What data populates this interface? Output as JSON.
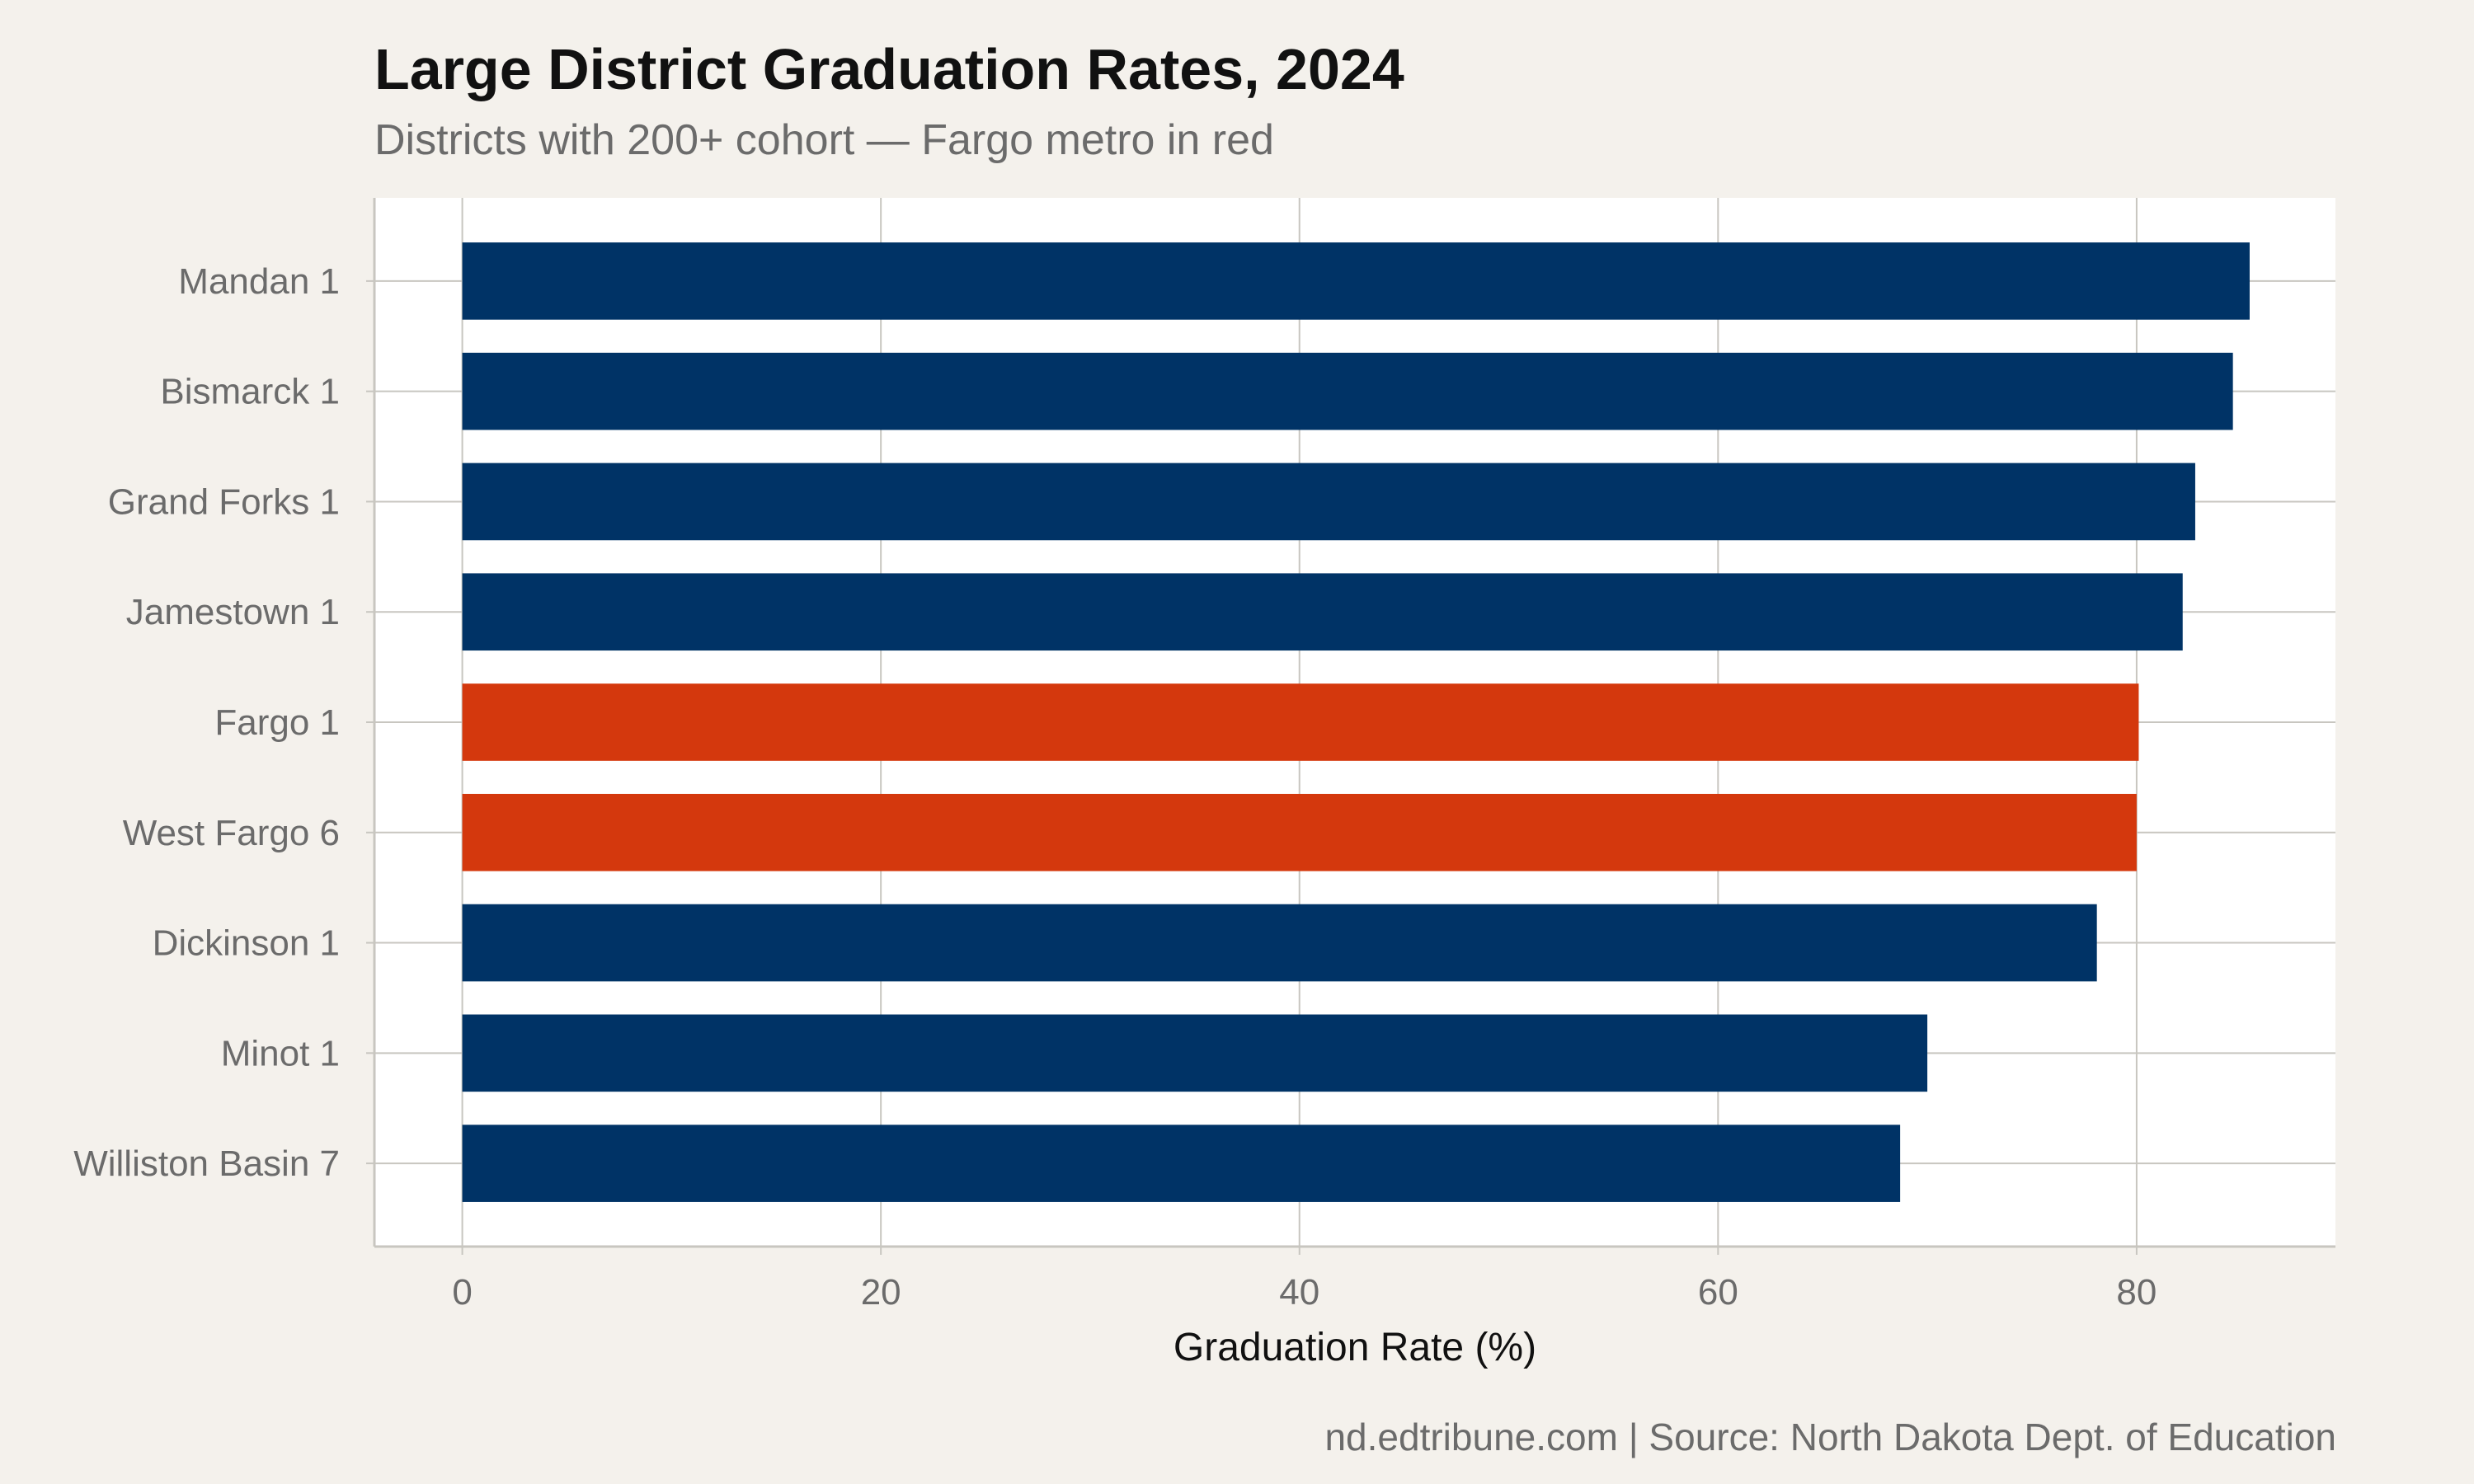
{
  "title": "Large District Graduation Rates, 2024",
  "subtitle": "Districts with 200+ cohort — Fargo metro in red",
  "caption": "nd.edtribune.com | Source: North Dakota Dept. of Education",
  "colors": {
    "background": "#f4f1ec",
    "panel": "#ffffff",
    "default_bar": "#003366",
    "highlight_bar": "#d4380d",
    "grid": "#c8c6c0"
  },
  "chart_data": {
    "type": "bar",
    "orientation": "horizontal",
    "title": "Large District Graduation Rates, 2024",
    "subtitle": "Districts with 200+ cohort — Fargo metro in red",
    "xlabel": "Graduation Rate (%)",
    "ylabel": "",
    "xlim": [
      -4.2,
      89.5
    ],
    "xticks": [
      0,
      20,
      40,
      60,
      80
    ],
    "grid": true,
    "categories": [
      "Mandan 1",
      "Bismarck 1",
      "Grand Forks 1",
      "Jamestown 1",
      "Fargo 1",
      "West Fargo 6",
      "Dickinson 1",
      "Minot 1",
      "Williston Basin 7"
    ],
    "values": [
      85.4,
      84.6,
      82.8,
      82.2,
      80.1,
      80.0,
      78.1,
      70.0,
      68.7
    ],
    "highlight": [
      false,
      false,
      false,
      false,
      true,
      true,
      false,
      false,
      false
    ]
  }
}
